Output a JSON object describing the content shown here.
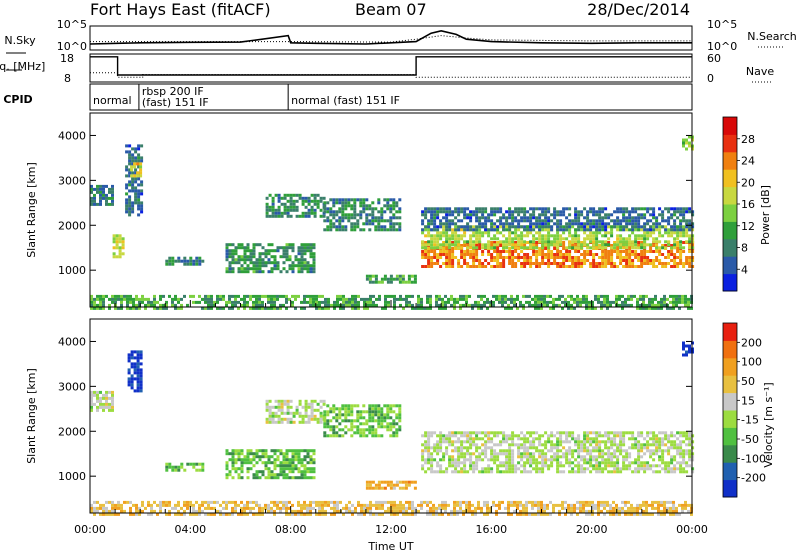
{
  "header": {
    "station": "Fort Hays East (fitACF)",
    "beam": "Beam 07",
    "date": "28/Dec/2014"
  },
  "chart_data": [
    {
      "type": "line",
      "panel": "noise",
      "left_label": "N.Sky",
      "right_label": "N.Search",
      "yticks_left": [
        "10^5",
        "10^0"
      ],
      "yticks_right": [
        "10^5",
        "10^0"
      ],
      "x_range_hours": [
        0,
        24
      ],
      "series": [
        {
          "name": "N.Sky",
          "style": "solid",
          "x": [
            0,
            2,
            4,
            6,
            7.9,
            8,
            9,
            11,
            13,
            13.6,
            14,
            14.6,
            15,
            16,
            18,
            20,
            22,
            24
          ],
          "y": [
            0.25,
            0.3,
            0.32,
            0.33,
            0.6,
            0.3,
            0.28,
            0.25,
            0.35,
            0.7,
            0.8,
            0.65,
            0.45,
            0.35,
            0.3,
            0.28,
            0.3,
            0.3
          ]
        },
        {
          "name": "N.Search",
          "style": "dotted",
          "x": [
            0,
            4,
            8,
            12,
            13,
            14,
            15,
            16,
            20,
            24
          ],
          "y": [
            0.35,
            0.35,
            0.35,
            0.33,
            0.45,
            0.6,
            0.5,
            0.42,
            0.38,
            0.38
          ]
        }
      ]
    },
    {
      "type": "line",
      "panel": "frequency",
      "left_label": "Freq. [MHz]",
      "right_label": "Nave",
      "yticks_left": [
        "18",
        "8"
      ],
      "yticks_right": [
        "60",
        "0"
      ],
      "series": [
        {
          "name": "Freq.",
          "style": "solid",
          "x": [
            0,
            1.1,
            1.1,
            13.0,
            13.0,
            24
          ],
          "y": [
            17,
            17,
            10.5,
            10.5,
            17,
            17
          ]
        },
        {
          "name": "Nave",
          "style": "dotted",
          "x": [
            0,
            1.1,
            1.1,
            2.1,
            2.1,
            13.0,
            13.0,
            24
          ],
          "y": [
            20,
            20,
            10,
            10,
            16,
            16,
            10,
            10
          ]
        }
      ]
    },
    {
      "type": "table",
      "panel": "cpid",
      "label": "CPID",
      "segments": [
        {
          "start": 0,
          "end": 1.95,
          "text": "normal"
        },
        {
          "start": 1.95,
          "end": 7.9,
          "text": "rbsp 200 IF (fast) 151 IF"
        },
        {
          "start": 7.9,
          "end": 24,
          "text": "normal (fast) 151 IF"
        }
      ]
    },
    {
      "type": "heatmap",
      "panel": "power",
      "ylabel": "Slant Range [km]",
      "yticks": [
        1000,
        2000,
        3000,
        4000
      ],
      "ylim": [
        180,
        4500
      ],
      "xlim": [
        0,
        24
      ],
      "colorbar": {
        "label": "Power [dB]",
        "ticks": [
          "4",
          "8",
          "12",
          "16",
          "20",
          "24",
          "28"
        ],
        "colors": [
          "#0a20e0",
          "#2a5aa8",
          "#3a7f6a",
          "#2f9f3a",
          "#7cd040",
          "#c8d840",
          "#f0c020",
          "#f08010",
          "#e83010",
          "#d80808"
        ]
      },
      "regions": [
        {
          "t0": 0.0,
          "t1": 0.9,
          "r0": 2450,
          "r1": 2900,
          "v": 0.22
        },
        {
          "t0": 0.9,
          "t1": 1.3,
          "r0": 1300,
          "r1": 1800,
          "v": 0.55
        },
        {
          "t0": 1.4,
          "t1": 2.0,
          "r0": 2200,
          "r1": 3800,
          "v": 0.2
        },
        {
          "t0": 1.6,
          "t1": 2.0,
          "r0": 3100,
          "r1": 3400,
          "v": 0.6
        },
        {
          "t0": 3.0,
          "t1": 4.5,
          "r0": 1100,
          "r1": 1300,
          "v": 0.25
        },
        {
          "t0": 5.4,
          "t1": 8.9,
          "r0": 950,
          "r1": 1600,
          "v": 0.3
        },
        {
          "t0": 7.0,
          "t1": 9.3,
          "r0": 2200,
          "r1": 2700,
          "v": 0.28
        },
        {
          "t0": 9.3,
          "t1": 12.4,
          "r0": 1900,
          "r1": 2600,
          "v": 0.26
        },
        {
          "t0": 11.0,
          "t1": 13.0,
          "r0": 700,
          "r1": 900,
          "v": 0.35
        },
        {
          "t0": 13.2,
          "t1": 24.0,
          "r0": 1100,
          "r1": 1650,
          "v": 0.75
        },
        {
          "t0": 13.2,
          "t1": 24.0,
          "r0": 1500,
          "r1": 2000,
          "v": 0.5
        },
        {
          "t0": 13.2,
          "t1": 24.0,
          "r0": 1900,
          "r1": 2400,
          "v": 0.2
        },
        {
          "t0": 23.6,
          "t1": 24.0,
          "r0": 3700,
          "r1": 4000,
          "v": 0.5
        },
        {
          "t0": 0.0,
          "t1": 24.0,
          "r0": 180,
          "r1": 450,
          "v": 0.35
        }
      ]
    },
    {
      "type": "heatmap",
      "panel": "velocity",
      "xlabel": "Time UT",
      "ylabel": "Slant Range [km]",
      "yticks": [
        1000,
        2000,
        3000,
        4000
      ],
      "ylim": [
        180,
        4500
      ],
      "xlim": [
        0,
        24
      ],
      "xticks": [
        "00:00",
        "04:00",
        "08:00",
        "12:00",
        "16:00",
        "20:00",
        "00:00"
      ],
      "colorbar": {
        "label": "Velocity [m s⁻¹]",
        "ticks": [
          "200",
          "100",
          "50",
          "15",
          "-15",
          "-50",
          "-100",
          "-200"
        ],
        "colors": [
          "#1030c8",
          "#2060b0",
          "#3a8a4a",
          "#50c040",
          "#9cdc40",
          "#c8c8c8",
          "#e8c040",
          "#f0a020",
          "#f07010",
          "#e82010"
        ]
      },
      "regions": [
        {
          "t0": 0.0,
          "t1": 0.9,
          "r0": 2450,
          "r1": 2900,
          "v": 0.5
        },
        {
          "t0": 1.5,
          "t1": 2.0,
          "r0": 2900,
          "r1": 3800,
          "v": 0.05
        },
        {
          "t0": 3.0,
          "t1": 4.5,
          "r0": 1100,
          "r1": 1300,
          "v": 0.35
        },
        {
          "t0": 5.4,
          "t1": 8.9,
          "r0": 950,
          "r1": 1600,
          "v": 0.35
        },
        {
          "t0": 7.0,
          "t1": 9.3,
          "r0": 2200,
          "r1": 2700,
          "v": 0.5
        },
        {
          "t0": 9.3,
          "t1": 12.4,
          "r0": 1900,
          "r1": 2600,
          "v": 0.38
        },
        {
          "t0": 11.0,
          "t1": 13.0,
          "r0": 700,
          "r1": 900,
          "v": 0.7
        },
        {
          "t0": 13.2,
          "t1": 24.0,
          "r0": 1100,
          "r1": 2000,
          "v": 0.5
        },
        {
          "t0": 23.6,
          "t1": 24.0,
          "r0": 3700,
          "r1": 4000,
          "v": 0.05
        },
        {
          "t0": 0.0,
          "t1": 24.0,
          "r0": 180,
          "r1": 450,
          "v": 0.65
        }
      ]
    }
  ]
}
